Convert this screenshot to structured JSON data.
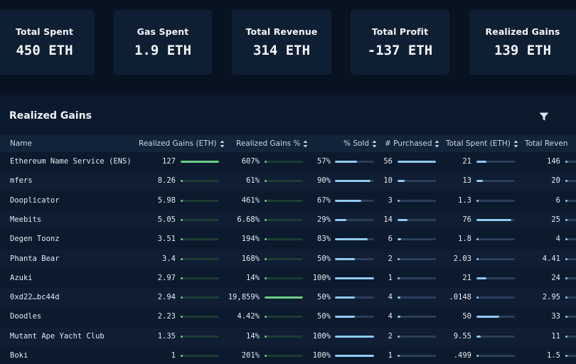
{
  "stats": [
    {
      "label": "Total Spent",
      "value": "450 ETH"
    },
    {
      "label": "Gas Spent",
      "value": "1.9 ETH"
    },
    {
      "label": "Total Revenue",
      "value": "314 ETH"
    },
    {
      "label": "Total Profit",
      "value": "-137 ETH"
    },
    {
      "label": "Realized Gains",
      "value": "139 ETH"
    }
  ],
  "panel": {
    "title": "Realized Gains",
    "filter_icon": "filter-icon"
  },
  "columns": {
    "name": "Name",
    "realized_gains": "Realized Gains (ETH)",
    "realized_pct": "Realized Gains %",
    "sold": "% Sold",
    "purchased": "# Purchased",
    "spent": "Total Spent (ETH)",
    "revenue": "Total Reven"
  },
  "colors": {
    "green_bar": "#6ccf87",
    "blue_bar": "#8fcbf0"
  },
  "rows": [
    {
      "name": "Ethereum Name Service (ENS)",
      "gain": "127",
      "gain_frac": 1.0,
      "pct": "607%",
      "pct_frac": 0.03,
      "sold": "57%",
      "sold_frac": 0.57,
      "purchased": "56",
      "purch_frac": 1.0,
      "spent": "21",
      "spent_frac": 0.25,
      "revenue": "146"
    },
    {
      "name": "mfers",
      "gain": "8.26",
      "gain_frac": 0.06,
      "pct": "61%",
      "pct_frac": 0.01,
      "sold": "90%",
      "sold_frac": 0.9,
      "purchased": "10",
      "purch_frac": 0.18,
      "spent": "13",
      "spent_frac": 0.17,
      "revenue": "20"
    },
    {
      "name": "Dooplicator",
      "gain": "5.98",
      "gain_frac": 0.05,
      "pct": "461%",
      "pct_frac": 0.02,
      "sold": "67%",
      "sold_frac": 0.67,
      "purchased": "3",
      "purch_frac": 0.05,
      "spent": "1.3",
      "spent_frac": 0.02,
      "revenue": "6"
    },
    {
      "name": "Meebits",
      "gain": "5.05",
      "gain_frac": 0.04,
      "pct": "6.68%",
      "pct_frac": 0.01,
      "sold": "29%",
      "sold_frac": 0.29,
      "purchased": "14",
      "purch_frac": 0.25,
      "spent": "76",
      "spent_frac": 0.9,
      "revenue": "25"
    },
    {
      "name": "Degen Toonz",
      "gain": "3.51",
      "gain_frac": 0.03,
      "pct": "194%",
      "pct_frac": 0.01,
      "sold": "83%",
      "sold_frac": 0.83,
      "purchased": "6",
      "purch_frac": 0.1,
      "spent": "1.8",
      "spent_frac": 0.02,
      "revenue": "4"
    },
    {
      "name": "Phanta Bear",
      "gain": "3.4",
      "gain_frac": 0.03,
      "pct": "168%",
      "pct_frac": 0.01,
      "sold": "50%",
      "sold_frac": 0.5,
      "purchased": "2",
      "purch_frac": 0.04,
      "spent": "2.03",
      "spent_frac": 0.03,
      "revenue": "4.41"
    },
    {
      "name": "Azuki",
      "gain": "2.97",
      "gain_frac": 0.02,
      "pct": "14%",
      "pct_frac": 0.005,
      "sold": "100%",
      "sold_frac": 1.0,
      "purchased": "1",
      "purch_frac": 0.02,
      "spent": "21",
      "spent_frac": 0.25,
      "revenue": "24"
    },
    {
      "name": "0xd22…bc44d",
      "gain": "2.94",
      "gain_frac": 0.02,
      "pct": "19,859%",
      "pct_frac": 1.0,
      "sold": "50%",
      "sold_frac": 0.5,
      "purchased": "4",
      "purch_frac": 0.07,
      "spent": ".0148",
      "spent_frac": 0.005,
      "revenue": "2.95"
    },
    {
      "name": "Doodles",
      "gain": "2.23",
      "gain_frac": 0.02,
      "pct": "4.42%",
      "pct_frac": 0.005,
      "sold": "50%",
      "sold_frac": 0.5,
      "purchased": "4",
      "purch_frac": 0.07,
      "spent": "50",
      "spent_frac": 0.6,
      "revenue": "33"
    },
    {
      "name": "Mutant Ape Yacht Club",
      "gain": "1.35",
      "gain_frac": 0.01,
      "pct": "14%",
      "pct_frac": 0.005,
      "sold": "100%",
      "sold_frac": 1.0,
      "purchased": "2",
      "purch_frac": 0.04,
      "spent": "9.55",
      "spent_frac": 0.11,
      "revenue": "11"
    },
    {
      "name": "Boki",
      "gain": "1",
      "gain_frac": 0.01,
      "pct": "201%",
      "pct_frac": 0.01,
      "sold": "100%",
      "sold_frac": 1.0,
      "purchased": "1",
      "purch_frac": 0.02,
      "spent": ".499",
      "spent_frac": 0.005,
      "revenue": "1.5"
    }
  ]
}
